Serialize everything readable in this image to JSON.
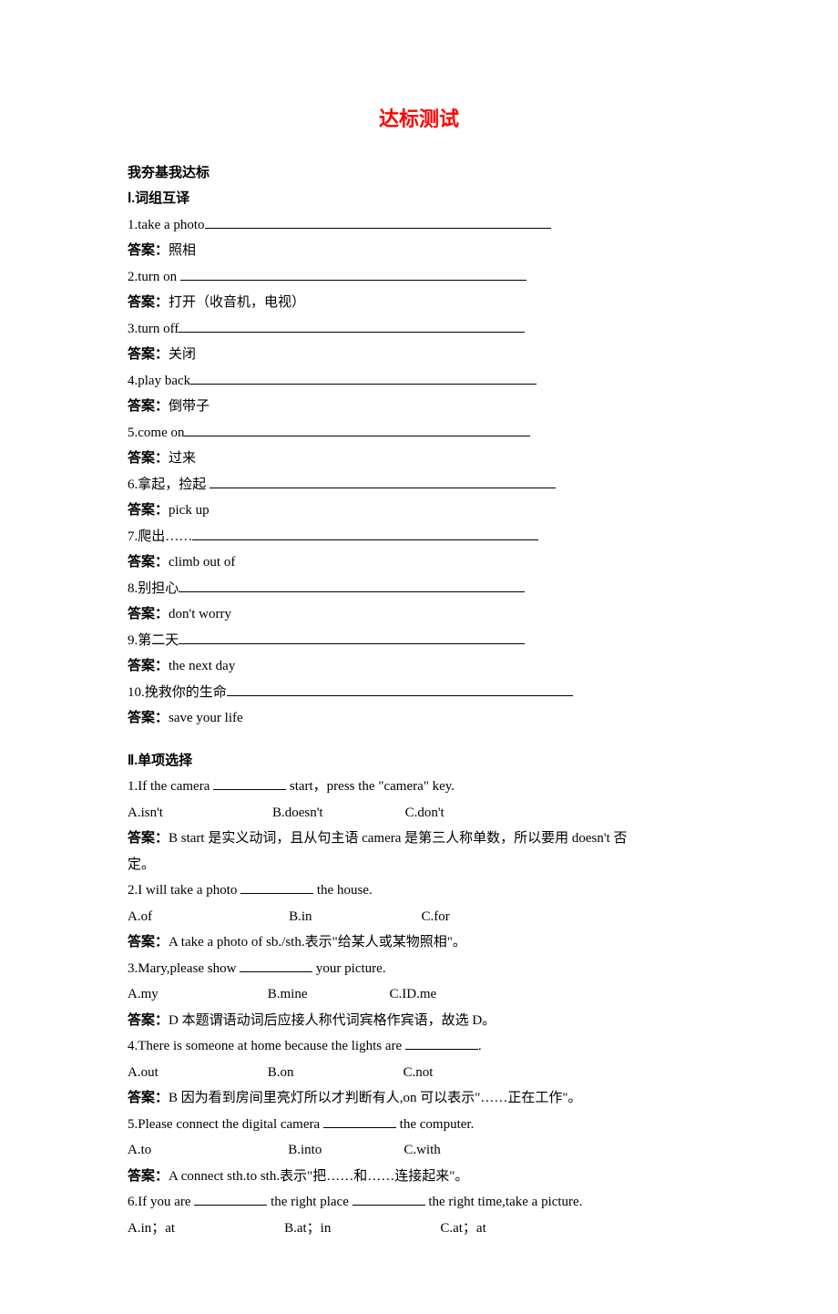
{
  "title": "达标测试",
  "subheader": "我夯基我达标",
  "section1": {
    "heading": "Ⅰ.词组互译",
    "answer_label": "答案：",
    "items": [
      {
        "prompt": "1.take a photo",
        "answer": "照相"
      },
      {
        "prompt": "2.turn on ",
        "answer": "打开（收音机，电视）"
      },
      {
        "prompt": "3.turn off",
        "answer": "关闭"
      },
      {
        "prompt": "4.play back",
        "answer": "倒带子"
      },
      {
        "prompt": "5.come on",
        "answer": "过来"
      },
      {
        "prompt": "6.拿起，捡起 ",
        "answer": "pick up"
      },
      {
        "prompt": "7.爬出……",
        "answer": "climb out of"
      },
      {
        "prompt": "8.别担心",
        "answer": "don't worry"
      },
      {
        "prompt": "9.第二天",
        "answer": "the next day"
      },
      {
        "prompt": "10.挽救你的生命",
        "answer": "save your life"
      }
    ]
  },
  "section2": {
    "heading": "Ⅱ.单项选择",
    "answer_label": "答案：",
    "q1": {
      "pre": "1.If the camera ",
      "post": " start，press the \"camera\" key.",
      "a": "A.isn't",
      "b": "B.doesn't",
      "c": "C.don't",
      "ans": "B  start 是实义动词，且从句主语 camera 是第三人称单数，所以要用 doesn't 否",
      "ans2": "定。"
    },
    "q2": {
      "pre": "2.I will take a photo ",
      "post": " the house.",
      "a": "A.of",
      "b": "B.in",
      "c": "C.for",
      "ans": "A  take a photo of sb./sth.表示\"给某人或某物照相\"。"
    },
    "q3": {
      "pre": "3.Mary,please show ",
      "post": " your picture.",
      "a": "A.my",
      "b": "B.mine",
      "c": "C.ID.me",
      "ans": "D  本题谓语动词后应接人称代词宾格作宾语，故选 D。"
    },
    "q4": {
      "pre": "4.There is someone at home because the lights are ",
      "post": ".",
      "a": "A.out",
      "b": "B.on",
      "c": "C.not",
      "ans": "B  因为看到房间里亮灯所以才判断有人,on 可以表示\"……正在工作\"。"
    },
    "q5": {
      "pre": "5.Please connect the digital camera ",
      "post": " the computer.",
      "a": "A.to",
      "b": "B.into",
      "c": "C.with",
      "ans": "A  connect sth.to sth.表示\"把……和……连接起来\"。"
    },
    "q6": {
      "pre": "6.If you are ",
      "mid": " the right place ",
      "post": " the right time,take a picture.",
      "a": "A.in；at",
      "b": "B.at；in",
      "c": "C.at；at"
    }
  }
}
